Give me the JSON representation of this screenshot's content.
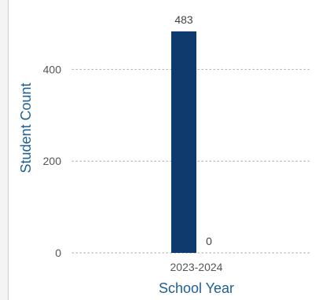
{
  "chart_data": {
    "type": "bar",
    "categories": [
      "2023-2024"
    ],
    "series": [
      {
        "values": [
          483
        ],
        "color": "#0e3a6e"
      },
      {
        "values": [
          0
        ],
        "color": "#4a90c8"
      }
    ],
    "data_labels": [
      "483",
      "0"
    ],
    "xlabel": "School Year",
    "ylabel": "Student Count",
    "ylim": [
      0,
      483
    ],
    "yticks": [
      0,
      200,
      400
    ],
    "ytick_labels": [
      "0",
      "200",
      "400"
    ],
    "grid": "dotted horizontal",
    "legend": "none",
    "colors": {
      "axis_title": "#1f5f94",
      "tick_text": "#555555",
      "grid": "#b8b8b8"
    }
  }
}
